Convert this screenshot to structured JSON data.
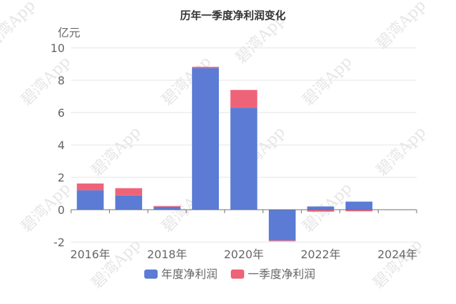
{
  "chart_data": {
    "type": "bar",
    "stacked": true,
    "title": "历年一季度净利润变化",
    "ylabel": "亿元",
    "ylim": [
      -2,
      10
    ],
    "yticks": [
      "-2",
      "0",
      "2",
      "4",
      "6",
      "8",
      "10"
    ],
    "categories": [
      "2016",
      "2017",
      "2018",
      "2019",
      "2020",
      "2021",
      "2022",
      "2023",
      "2024"
    ],
    "xtick_labels": [
      "2016年",
      "2018年",
      "2020年",
      "2022年",
      "2024年"
    ],
    "grid": true,
    "legend_position": "bottom",
    "series": [
      {
        "name": "年度净利润",
        "color": "#5b7bd5",
        "values": [
          1.2,
          0.88,
          0.18,
          8.75,
          6.3,
          -1.9,
          0.2,
          0.5,
          0.0
        ]
      },
      {
        "name": "一季度净利润",
        "color": "#ef6379",
        "values": [
          0.42,
          0.45,
          0.05,
          0.08,
          1.1,
          -0.05,
          -0.12,
          -0.1,
          0.02
        ]
      }
    ]
  },
  "watermark": "碧湾App"
}
